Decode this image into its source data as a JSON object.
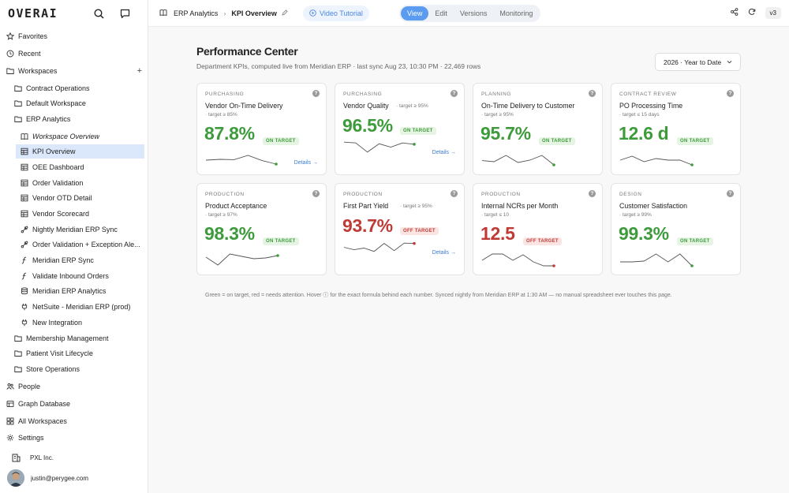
{
  "app": {
    "logo": "OVERAI"
  },
  "sidebar": {
    "items": [
      {
        "label": "Favorites",
        "icon": "star-icon"
      },
      {
        "label": "Recent",
        "icon": "clock-icon"
      },
      {
        "label": "Workspaces",
        "icon": "folder-icon"
      },
      {
        "label": "Contract Operations",
        "icon": "folder-icon"
      },
      {
        "label": "Default Workspace",
        "icon": "folder-icon"
      },
      {
        "label": "ERP Analytics",
        "icon": "folder-icon"
      },
      {
        "label": "Workspace Overview",
        "icon": "book-icon"
      },
      {
        "label": "KPI Overview",
        "icon": "table-icon"
      },
      {
        "label": "OEE Dashboard",
        "icon": "table-icon"
      },
      {
        "label": "Order Validation",
        "icon": "table-icon"
      },
      {
        "label": "Vendor OTD Detail",
        "icon": "table-icon"
      },
      {
        "label": "Vendor Scorecard",
        "icon": "table-icon"
      },
      {
        "label": "Nightly Meridian ERP Sync",
        "icon": "workflow-icon"
      },
      {
        "label": "Order Validation + Exception Ale...",
        "icon": "workflow-icon"
      },
      {
        "label": "Meridian ERP Sync",
        "icon": "function-icon"
      },
      {
        "label": "Validate Inbound Orders",
        "icon": "function-icon"
      },
      {
        "label": "Meridian ERP Analytics",
        "icon": "database-icon"
      },
      {
        "label": "NetSuite - Meridian ERP (prod)",
        "icon": "plug-icon"
      },
      {
        "label": "New Integration",
        "icon": "plug-icon"
      },
      {
        "label": "Membership Management",
        "icon": "folder-icon"
      },
      {
        "label": "Patient Visit Lifecycle",
        "icon": "folder-icon"
      },
      {
        "label": "Store Operations",
        "icon": "folder-icon"
      },
      {
        "label": "People",
        "icon": "people-icon"
      },
      {
        "label": "Graph Database",
        "icon": "graph-icon"
      },
      {
        "label": "All Workspaces",
        "icon": "grid-icon"
      },
      {
        "label": "Settings",
        "icon": "gear-icon"
      }
    ],
    "org": "PXL Inc.",
    "user": "justin@perygee.com"
  },
  "topbar": {
    "breadcrumb_parent": "ERP Analytics",
    "breadcrumb_current": "KPI Overview",
    "tutorial": "Video Tutorial",
    "modes": [
      "View",
      "Edit",
      "Versions",
      "Monitoring"
    ],
    "active_mode": "View",
    "version": "v3"
  },
  "main": {
    "title": "Performance Center",
    "subtitle": "Department KPIs, computed live from Meridian ERP · last sync Aug 23, 10:30 PM · 22,469 rows",
    "period": "2026 · Year to Date",
    "footnote": "Green = on target, red = needs attention. Hover ⓘ for the exact formula behind each number. Synced nightly from Meridian ERP at 1:30 AM — no manual spreadsheet ever touches this page."
  },
  "cards": [
    {
      "category": "PURCHASING",
      "name": "Vendor On-Time Delivery",
      "target": "· target ≥ 85%",
      "value": "87.8%",
      "status": "ON TARGET",
      "details": "Details →",
      "spark": [
        0.45,
        0.5,
        0.48,
        0.75,
        0.42,
        0.2
      ]
    },
    {
      "category": "PURCHASING",
      "name": "Vendor Quality",
      "target": "· target ≥ 95%",
      "value": "96.5%",
      "status": "ON TARGET",
      "details": "Details →",
      "spark": [
        0.85,
        0.8,
        0.25,
        0.75,
        0.55,
        0.8,
        0.72
      ]
    },
    {
      "category": "PLANNING",
      "name": "On-Time Delivery to Customer",
      "target": "· target ≥ 95%",
      "value": "95.7%",
      "status": "ON TARGET",
      "details": "",
      "spark": [
        0.42,
        0.35,
        0.75,
        0.3,
        0.45,
        0.75,
        0.15
      ]
    },
    {
      "category": "CONTRACT REVIEW",
      "name": "PO Processing Time",
      "target": "· target ≤ 15 days",
      "value": "12.6 d",
      "status": "ON TARGET",
      "details": "",
      "spark": [
        0.45,
        0.7,
        0.35,
        0.55,
        0.45,
        0.45,
        0.15
      ]
    },
    {
      "category": "PRODUCTION",
      "name": "Product Acceptance",
      "target": "· target ≥ 97%",
      "value": "98.3%",
      "status": "ON TARGET",
      "details": "",
      "spark": [
        0.65,
        0.15,
        0.85,
        0.7,
        0.55,
        0.6,
        0.75
      ]
    },
    {
      "category": "PRODUCTION",
      "name": "First Part Yield",
      "target": "· target ≥ 95%",
      "value": "93.7%",
      "status": "OFF TARGET",
      "details": "Details →",
      "spark": [
        0.55,
        0.4,
        0.5,
        0.3,
        0.78,
        0.35,
        0.8,
        0.78
      ]
    },
    {
      "category": "PRODUCTION",
      "name": "Internal NCRs per Month",
      "target": "· target ≤ 10",
      "value": "12.5",
      "status": "OFF TARGET",
      "details": "",
      "spark": [
        0.45,
        0.85,
        0.85,
        0.45,
        0.8,
        0.35,
        0.1,
        0.1
      ]
    },
    {
      "category": "DESIGN",
      "name": "Customer Satisfaction",
      "target": "· target ≥ 99%",
      "value": "99.3%",
      "status": "ON TARGET",
      "details": "",
      "spark": [
        0.35,
        0.35,
        0.4,
        0.85,
        0.35,
        0.85,
        0.1
      ]
    }
  ],
  "colors": {
    "on_target": "#3e9b3c",
    "off_target": "#bf3b36",
    "accent": "#5b9cf0",
    "sidebar_active": "#dbe8fb",
    "spark_line": "#555555"
  }
}
